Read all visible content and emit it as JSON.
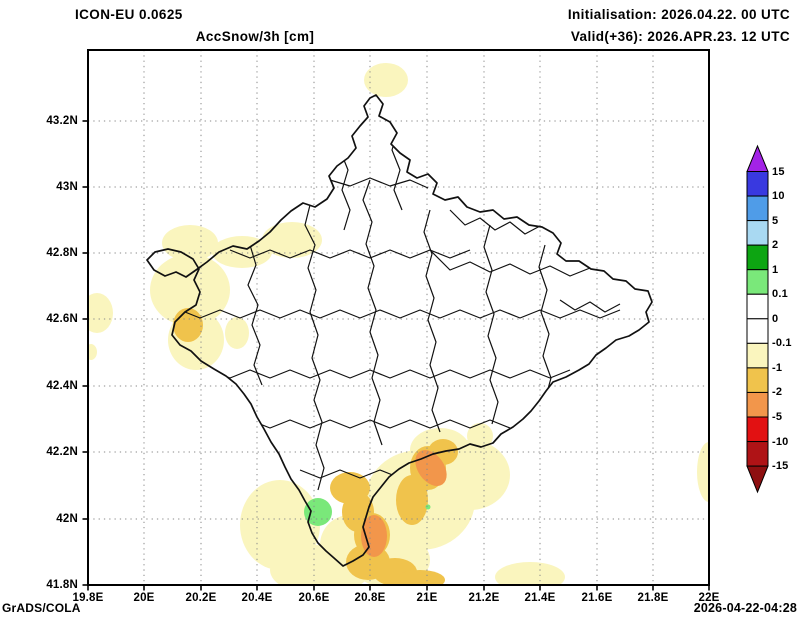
{
  "header": {
    "model_title": "ICON-EU 0.0625",
    "variable_title": "AccSnow/3h [cm]",
    "initialisation": "Initialisation: 2026.04.22. 00 UTC",
    "valid": "Valid(+36): 2026.APR.23. 12 UTC"
  },
  "axes": {
    "lat_ticks": [
      "43.2N",
      "43N",
      "42.8N",
      "42.6N",
      "42.4N",
      "42.2N",
      "42N",
      "41.8N"
    ],
    "lon_ticks": [
      "19.8E",
      "20E",
      "20.2E",
      "20.4E",
      "20.6E",
      "20.8E",
      "21E",
      "21.2E",
      "21.4E",
      "21.6E",
      "21.8E",
      "22E"
    ]
  },
  "colorbar": {
    "boundary_labels": [
      "15",
      "10",
      "5",
      "2",
      "1",
      "0.1",
      "0",
      "-0.1",
      "-1",
      "-2",
      "-5",
      "-10",
      "-15"
    ],
    "segment_colors_top_to_bottom": [
      "#3939E0",
      "#4F9CE8",
      "#A9D9F2",
      "#0DA512",
      "#7AE87A",
      "#FFFFFF",
      "#FFFFFF",
      "#FAF5BE",
      "#F0C34C",
      "#F2964B",
      "#E21112",
      "#AF1316"
    ],
    "arrow_top_color": "#A323E6",
    "arrow_bottom_color": "#8E0F10"
  },
  "map_shading_colors": {
    "green_band": "#7AE87A",
    "pale_band": "#FAF5BE",
    "golden_band": "#F0C34C",
    "orange_band": "#F2964B"
  },
  "footer": {
    "credit": "GrADS/COLA",
    "timestamp": "2026-04-22-04:28"
  }
}
